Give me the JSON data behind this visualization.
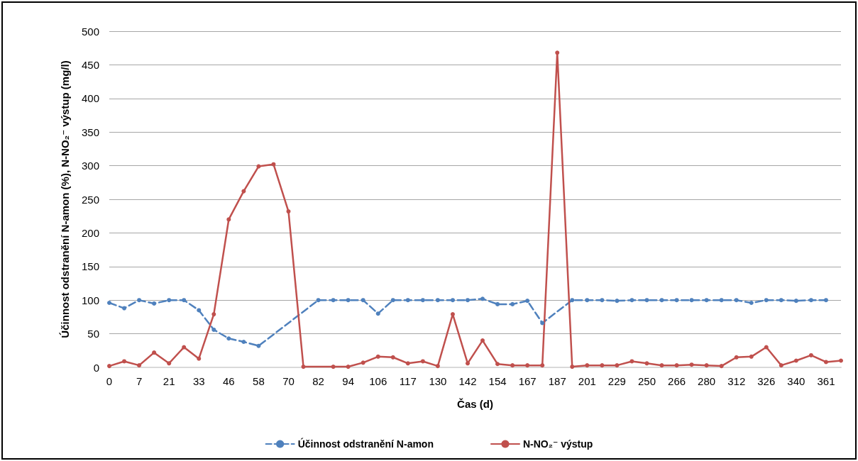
{
  "chart_data": {
    "type": "line",
    "xlabel": "Čas (d)",
    "ylabel": "Účinnost odstranění N-amon (%), N-NO₂⁻ výstup (mg/l)",
    "categories": [
      "0",
      null,
      "7",
      null,
      "21",
      null,
      "33",
      null,
      "46",
      null,
      "58",
      null,
      "70",
      null,
      "82",
      null,
      "94",
      null,
      "106",
      null,
      "117",
      null,
      "130",
      null,
      "142",
      null,
      "154",
      null,
      "167",
      null,
      "187",
      null,
      "201",
      null,
      "229",
      null,
      "250",
      null,
      "266",
      null,
      "280",
      null,
      "312",
      null,
      "326",
      null,
      "340",
      null,
      "361",
      null
    ],
    "series": [
      {
        "name": "Účinnost odstranění N-amon",
        "color": "#4f81bd",
        "line_style": "dashed",
        "values": [
          96,
          88,
          100,
          95,
          100,
          100,
          85,
          56,
          43,
          38,
          32,
          null,
          null,
          null,
          100,
          100,
          100,
          100,
          80,
          100,
          100,
          100,
          100,
          100,
          100,
          102,
          94,
          94,
          99,
          66,
          null,
          100,
          100,
          100,
          99,
          100,
          100,
          100,
          100,
          100,
          100,
          100,
          100,
          96,
          100,
          100,
          99,
          100,
          100,
          null
        ]
      },
      {
        "name": "N-NO₂⁻ výstup",
        "color": "#c0504d",
        "line_style": "solid",
        "values": [
          2,
          9,
          3,
          22,
          6,
          30,
          13,
          79,
          220,
          262,
          299,
          302,
          232,
          1,
          null,
          1,
          1,
          7,
          16,
          15,
          6,
          9,
          2,
          79,
          6,
          40,
          5,
          3,
          3,
          3,
          468,
          1,
          3,
          3,
          3,
          9,
          6,
          3,
          3,
          4,
          3,
          2,
          15,
          16,
          30,
          3,
          10,
          18,
          8,
          10
        ]
      }
    ],
    "ylim": [
      0,
      500
    ],
    "yticks": [
      0,
      50,
      100,
      150,
      200,
      250,
      300,
      350,
      400,
      450,
      500
    ],
    "grid": "y",
    "legend": "bottom",
    "marker": "circle"
  }
}
